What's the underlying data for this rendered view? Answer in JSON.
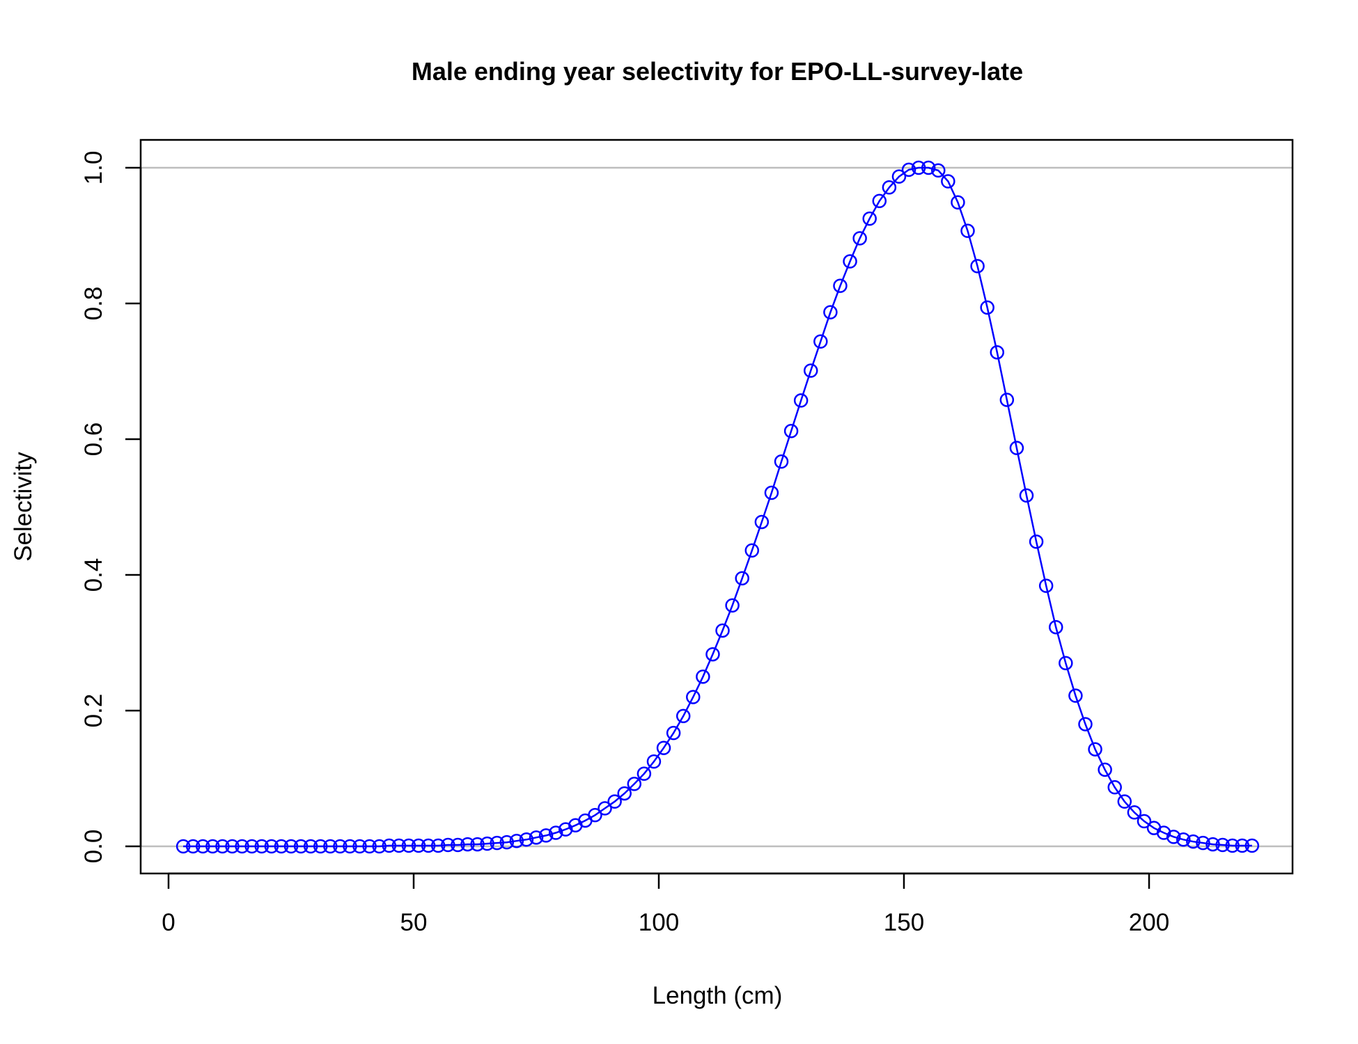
{
  "chart_data": {
    "type": "line",
    "title": "Male ending year selectivity for EPO-LL-survey-late",
    "xlabel": "Length (cm)",
    "ylabel": "Selectivity",
    "xlim": [
      0,
      230
    ],
    "ylim": [
      0,
      1.0
    ],
    "x_ticks": [
      0,
      50,
      100,
      150,
      200
    ],
    "x_tick_labels": [
      "0",
      "50",
      "100",
      "150",
      "200"
    ],
    "y_ticks": [
      0,
      0.2,
      0.4,
      0.6,
      0.8,
      1.0
    ],
    "y_tick_labels": [
      "0.0",
      "0.2",
      "0.4",
      "0.6",
      "0.8",
      "1.0"
    ],
    "reference_lines_y": [
      0,
      1
    ],
    "grid": false,
    "legend": "none",
    "colors": {
      "series": "#0000FF",
      "reference": "#BEBEBE",
      "frame": "#000000"
    },
    "series": [
      {
        "marker": "open-circle",
        "x": [
          3,
          5,
          7,
          9,
          11,
          13,
          15,
          17,
          19,
          21,
          23,
          25,
          27,
          29,
          31,
          33,
          35,
          37,
          39,
          41,
          43,
          45,
          47,
          49,
          51,
          53,
          55,
          57,
          59,
          61,
          63,
          65,
          67,
          69,
          71,
          73,
          75,
          77,
          79,
          81,
          83,
          85,
          87,
          89,
          91,
          93,
          95,
          97,
          99,
          101,
          103,
          105,
          107,
          109,
          111,
          113,
          115,
          117,
          119,
          121,
          123,
          125,
          127,
          129,
          131,
          133,
          135,
          137,
          139,
          141,
          143,
          145,
          147,
          149,
          151,
          153,
          155,
          157,
          159,
          161,
          163,
          165,
          167,
          169,
          171,
          173,
          175,
          177,
          179,
          181,
          183,
          185,
          187,
          189,
          191,
          193,
          195,
          197,
          199,
          201,
          203,
          205,
          207,
          209,
          211,
          213,
          215,
          217,
          219,
          221
        ],
        "y": [
          0.0,
          0.0,
          0.0,
          0.0,
          0.0,
          0.0,
          0.0,
          0.0,
          0.0,
          0.0,
          0.0,
          0.0,
          0.0,
          0.0,
          0.0,
          0.0,
          0.0,
          0.0,
          0.0,
          0.0,
          0.0,
          0.001,
          0.001,
          0.001,
          0.001,
          0.001,
          0.001,
          0.002,
          0.002,
          0.003,
          0.003,
          0.004,
          0.005,
          0.006,
          0.008,
          0.01,
          0.013,
          0.016,
          0.02,
          0.025,
          0.031,
          0.038,
          0.046,
          0.056,
          0.066,
          0.078,
          0.092,
          0.107,
          0.125,
          0.145,
          0.167,
          0.192,
          0.22,
          0.25,
          0.283,
          0.318,
          0.355,
          0.395,
          0.436,
          0.478,
          0.521,
          0.567,
          0.612,
          0.657,
          0.701,
          0.744,
          0.787,
          0.826,
          0.862,
          0.896,
          0.925,
          0.951,
          0.971,
          0.987,
          0.997,
          1.0,
          1.0,
          0.996,
          0.98,
          0.949,
          0.907,
          0.855,
          0.794,
          0.728,
          0.658,
          0.587,
          0.517,
          0.449,
          0.384,
          0.323,
          0.27,
          0.222,
          0.18,
          0.143,
          0.113,
          0.087,
          0.066,
          0.05,
          0.037,
          0.027,
          0.02,
          0.014,
          0.01,
          0.007,
          0.005,
          0.003,
          0.002,
          0.001,
          0.001,
          0.001
        ]
      }
    ]
  }
}
